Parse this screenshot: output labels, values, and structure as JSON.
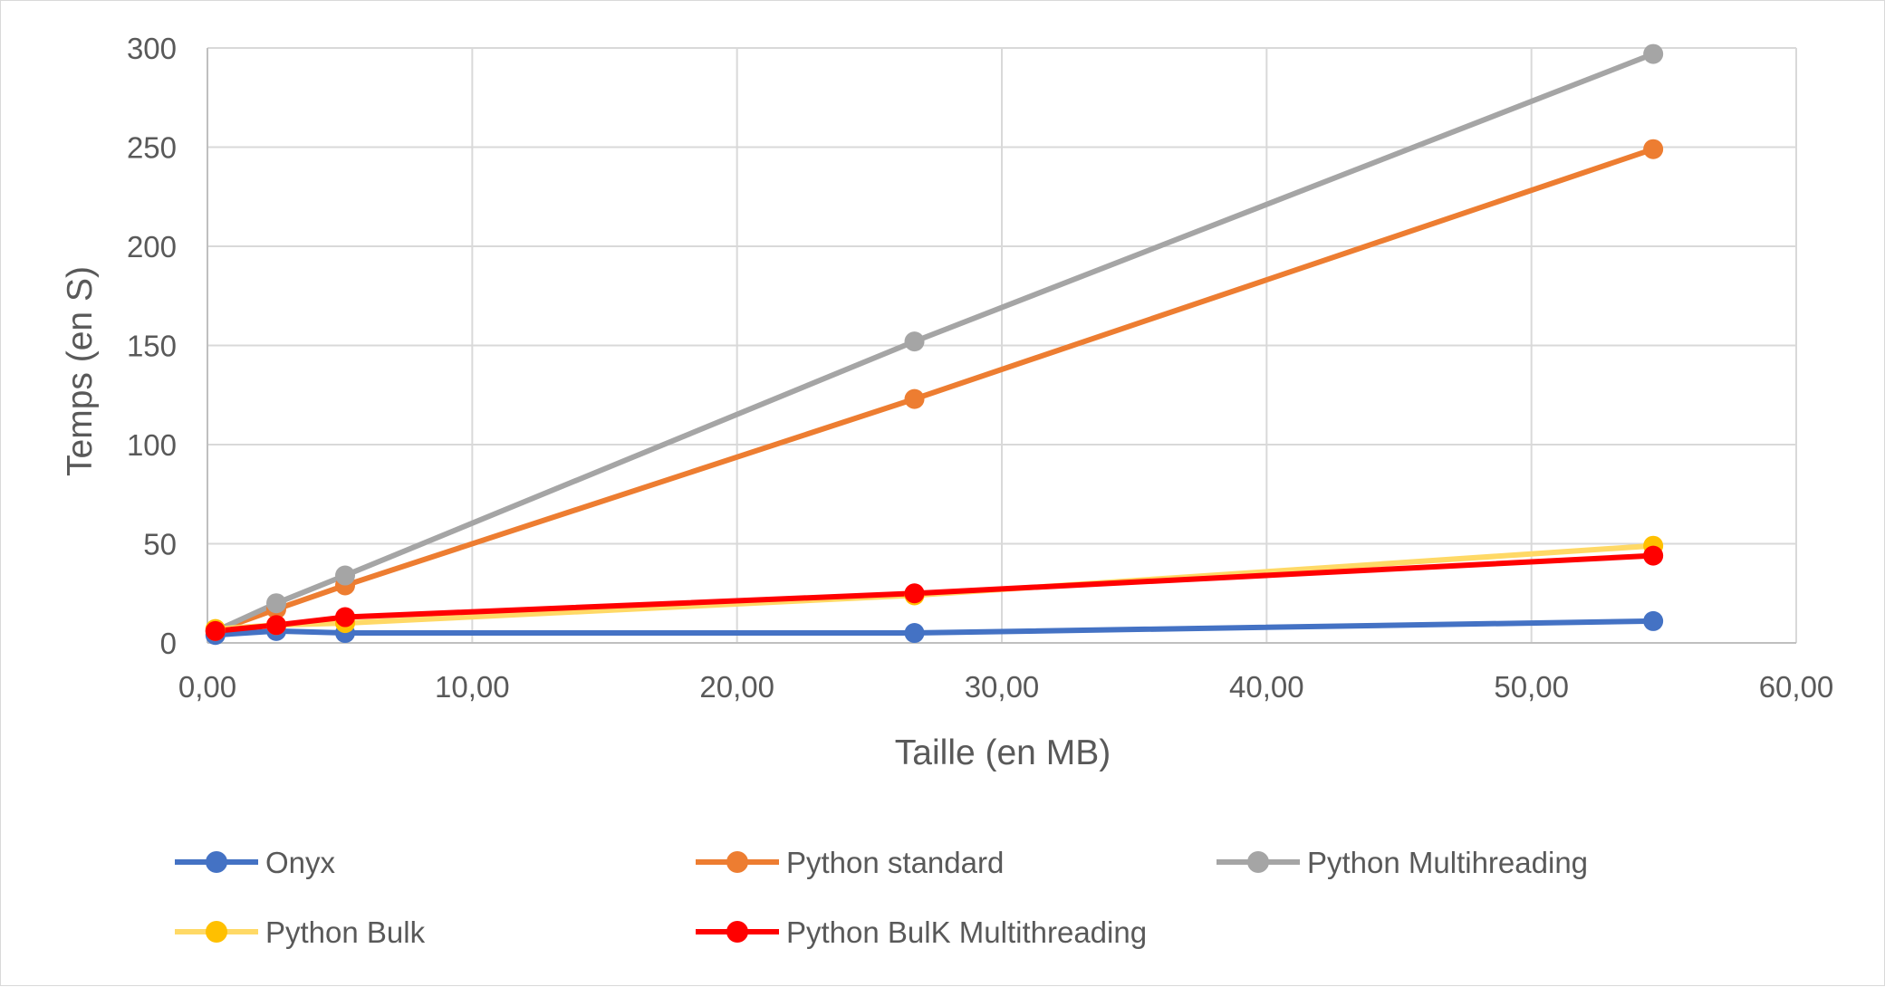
{
  "chart_data": {
    "type": "line",
    "xlabel": "Taille (en MB)",
    "ylabel": "Temps (en S)",
    "xlim": [
      0,
      60
    ],
    "ylim": [
      0,
      300
    ],
    "x_ticks": [
      "0,00",
      "10,00",
      "20,00",
      "30,00",
      "40,00",
      "50,00",
      "60,00"
    ],
    "y_ticks": [
      "0",
      "50",
      "100",
      "150",
      "200",
      "250",
      "300"
    ],
    "grid": true,
    "legend_position": "bottom",
    "x": [
      0.3,
      2.6,
      5.2,
      26.7,
      54.6
    ],
    "series": [
      {
        "name": "Onyx",
        "color": "#4472c4",
        "values": [
          4,
          6,
          5,
          5,
          11
        ]
      },
      {
        "name": "Python standard",
        "color": "#ed7d31",
        "values": [
          6,
          17,
          29,
          123,
          249
        ]
      },
      {
        "name": "Python Multihreading",
        "color": "#a5a5a5",
        "values": [
          6,
          20,
          34,
          152,
          297
        ]
      },
      {
        "name": "Python Bulk",
        "color": "#ffc000",
        "line_color": "#ffd966",
        "values": [
          7,
          9,
          10,
          24,
          49
        ]
      },
      {
        "name": "Python BulK Multithreading",
        "color": "#ff0000",
        "values": [
          6,
          9,
          13,
          25,
          44
        ]
      }
    ]
  }
}
